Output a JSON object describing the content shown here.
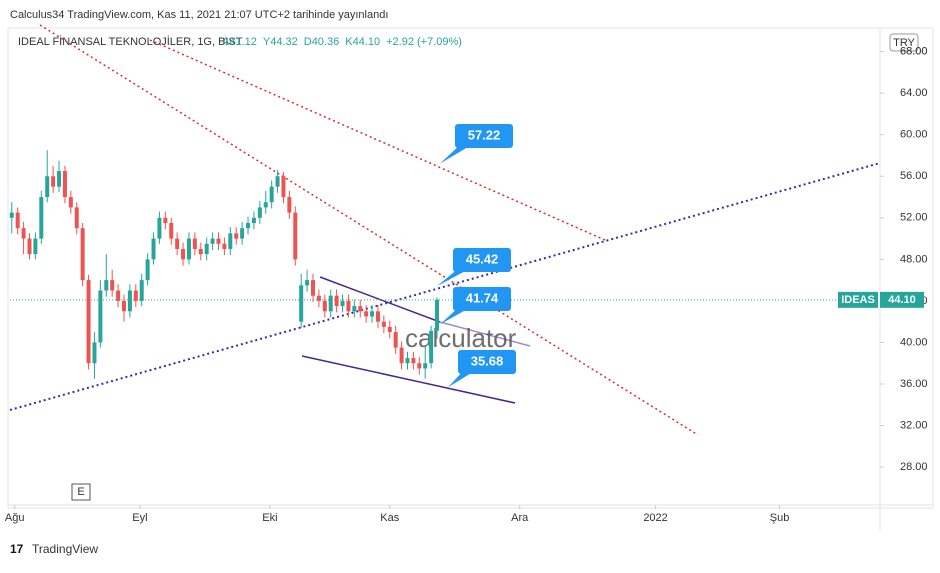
{
  "header": {
    "publisher": "Calculus34 TradingView.com, Kas 11, 2021 21:07 UTC+2 tarihinde yayınlandı",
    "footer": "TradingView",
    "currency": "TRY",
    "button": "E",
    "watermark": "calculator"
  },
  "chart_data": {
    "type": "candlestick",
    "title": "IDEAL FİNANSAL TEKNOLOJİLER, 1G, BIST",
    "legend_values": [
      "A41.12",
      "Y44.32",
      "D40.36",
      "K44.10",
      "+2.92 (+7.09%)"
    ],
    "up_color": "#26a69a",
    "down_color": "#ef5350",
    "x": [
      0,
      1,
      2,
      3,
      4,
      5,
      6,
      7,
      8,
      9,
      10,
      11,
      12,
      13,
      14,
      15,
      16,
      17,
      18,
      19,
      20,
      21,
      22,
      23,
      24,
      25,
      26,
      27,
      28,
      29,
      30,
      31,
      32,
      33,
      34,
      35,
      36,
      37,
      38,
      39,
      40,
      41,
      42,
      43,
      44,
      45,
      46,
      47,
      48,
      49,
      50,
      51,
      52,
      53,
      54,
      55,
      56,
      57,
      58,
      59,
      60,
      61,
      62,
      63,
      64,
      65,
      66,
      67,
      68,
      69,
      70,
      71,
      72
    ],
    "open": [
      52,
      52.5,
      51,
      50,
      48.5,
      50,
      54,
      56,
      55,
      56.5,
      54,
      53,
      51,
      46,
      38,
      40,
      45,
      46,
      45,
      44,
      43,
      45,
      44,
      46,
      48,
      50,
      52,
      51.5,
      50,
      49,
      48,
      50,
      49,
      48.5,
      49.5,
      50,
      49.5,
      49,
      50.5,
      50,
      51,
      51.5,
      52,
      53,
      53.5,
      55,
      56,
      54,
      52.5,
      42,
      45.5,
      46,
      44.5,
      44,
      43,
      44.5,
      43.5,
      44,
      43,
      43.5,
      43,
      42.5,
      43,
      42,
      41.5,
      41,
      39.5,
      38,
      38.5,
      38,
      37.5,
      38,
      41.12
    ],
    "high": [
      53.5,
      53,
      51.6,
      50.5,
      50.6,
      54.6,
      58.5,
      57,
      57.5,
      57,
      54.6,
      53.5,
      51.5,
      46.5,
      41,
      46,
      48.5,
      47,
      45.6,
      44.6,
      45.6,
      45.6,
      46.6,
      48.6,
      50.6,
      52.6,
      52.6,
      52,
      50.6,
      49.6,
      50.6,
      50.6,
      49.6,
      50.1,
      50.6,
      50.6,
      50.1,
      51.1,
      51.1,
      51.6,
      52.1,
      52.6,
      53.6,
      54.6,
      55.6,
      56.6,
      56.4,
      54.6,
      53.1,
      46.6,
      47,
      46.6,
      45.1,
      44.6,
      45.1,
      45.1,
      44.6,
      44.6,
      44.1,
      44.1,
      43.6,
      43.6,
      43.6,
      42.6,
      42.1,
      41.6,
      40.1,
      39.1,
      39.1,
      38.6,
      39.6,
      41.6,
      44.32
    ],
    "low": [
      50.5,
      50.4,
      48.5,
      48,
      48,
      49.5,
      53.5,
      54.4,
      54.5,
      53.4,
      52.4,
      50.4,
      45.4,
      37.4,
      36.5,
      39.5,
      44.4,
      44.4,
      43.4,
      42,
      42.4,
      43.4,
      43.5,
      45.5,
      47.5,
      49.5,
      50.9,
      49.4,
      48.4,
      47.4,
      47.5,
      48.4,
      47.9,
      47.9,
      48.9,
      48.9,
      48.4,
      48.4,
      49.4,
      49.4,
      50.4,
      50.9,
      51.4,
      52.4,
      52.9,
      54.4,
      53.4,
      51.9,
      47.4,
      41.4,
      44.9,
      43.9,
      43.4,
      42.4,
      42.4,
      42.9,
      42.9,
      42.4,
      42.4,
      42.4,
      41.9,
      41.9,
      41.4,
      40.9,
      40.4,
      38.9,
      37.4,
      37.4,
      37.4,
      36.9,
      36.5,
      37.5,
      40.36
    ],
    "close": [
      52.5,
      51,
      50,
      48.5,
      50,
      54,
      56,
      55,
      56.5,
      54,
      53,
      51,
      46,
      38,
      40,
      45,
      46,
      45,
      44,
      43,
      45,
      44,
      46,
      48,
      50,
      52,
      51.5,
      50,
      49,
      48,
      50,
      49,
      48.5,
      49.5,
      50,
      49.5,
      49,
      50.5,
      50,
      51,
      51.5,
      52,
      53,
      53.5,
      55,
      56,
      54,
      52.5,
      48,
      45.5,
      46,
      44.5,
      44,
      43,
      44.5,
      43.5,
      44,
      43,
      43.5,
      43,
      42.5,
      43,
      42,
      41.5,
      41,
      39.5,
      38,
      38.5,
      38,
      37.5,
      38,
      41.12,
      44.1
    ],
    "xlim": [
      -0.3,
      147
    ],
    "xticks": [
      {
        "value": 0.5,
        "label": "Ağu"
      },
      {
        "value": 21.7,
        "label": "Eyl"
      },
      {
        "value": 43.7,
        "label": "Eki"
      },
      {
        "value": 64,
        "label": "Kas"
      },
      {
        "value": 86,
        "label": "Ara"
      },
      {
        "value": 109,
        "label": "2022"
      },
      {
        "value": 130,
        "label": "Şub"
      }
    ],
    "ylim": [
      24.35,
      69.6
    ],
    "yticks": [
      {
        "value": 28,
        "label": "28.00"
      },
      {
        "value": 32,
        "label": "32.00"
      },
      {
        "value": 36,
        "label": "36.00"
      },
      {
        "value": 40,
        "label": "40.00"
      },
      {
        "value": 44,
        "label": "44.00"
      },
      {
        "value": 48,
        "label": "48.00"
      },
      {
        "value": 52,
        "label": "52.00"
      },
      {
        "value": 56,
        "label": "56.00"
      },
      {
        "value": 60,
        "label": "60.00"
      },
      {
        "value": 64,
        "label": "64.00"
      },
      {
        "value": 68,
        "label": "68.00"
      }
    ],
    "last_price": {
      "symbol": "IDEAS",
      "value": 44.1,
      "label": "44.10"
    },
    "annotations": [
      {
        "value": 57.22,
        "label": "57.22"
      },
      {
        "value": 45.42,
        "label": "45.42"
      },
      {
        "value": 41.74,
        "label": "41.74"
      },
      {
        "value": 35.68,
        "label": "35.68"
      }
    ]
  }
}
